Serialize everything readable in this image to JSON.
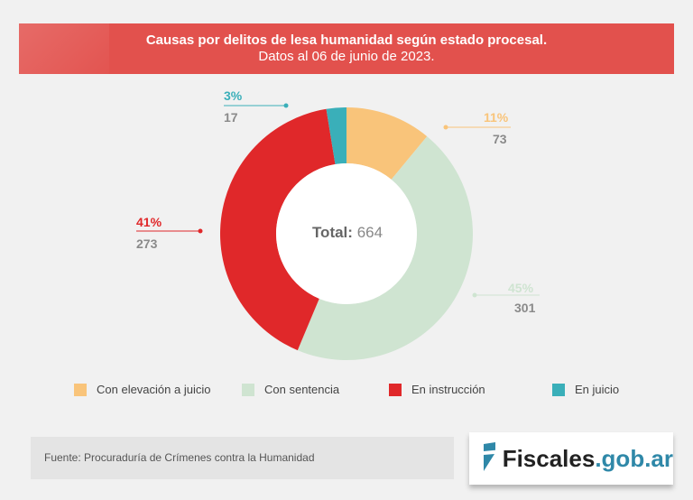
{
  "title": "Causas por delitos de lesa humanidad según estado procesal.",
  "subtitle": "Datos al 06 de junio de 2023.",
  "chart_data": {
    "type": "pie",
    "donut": true,
    "title": "Causas por delitos de lesa humanidad según estado procesal.",
    "subtitle": "Datos al 06 de junio de 2023.",
    "total_label": "Total:",
    "total": "664",
    "categories": [
      "Con elevación a juicio",
      "Con sentencia",
      "En instrucción",
      "En juicio"
    ],
    "values": [
      73,
      301,
      273,
      17
    ],
    "percent_labels": [
      "11%",
      "45%",
      "41%",
      "3%"
    ],
    "colors": [
      "#f9c47a",
      "#cfe4d1",
      "#e0282a",
      "#3aafb9"
    ],
    "legend_position": "bottom"
  },
  "source": "Fuente: Procuraduría de Crímenes contra la Humanidad",
  "logo": {
    "main": "Fiscales",
    "suffix": ".gob.ar"
  }
}
